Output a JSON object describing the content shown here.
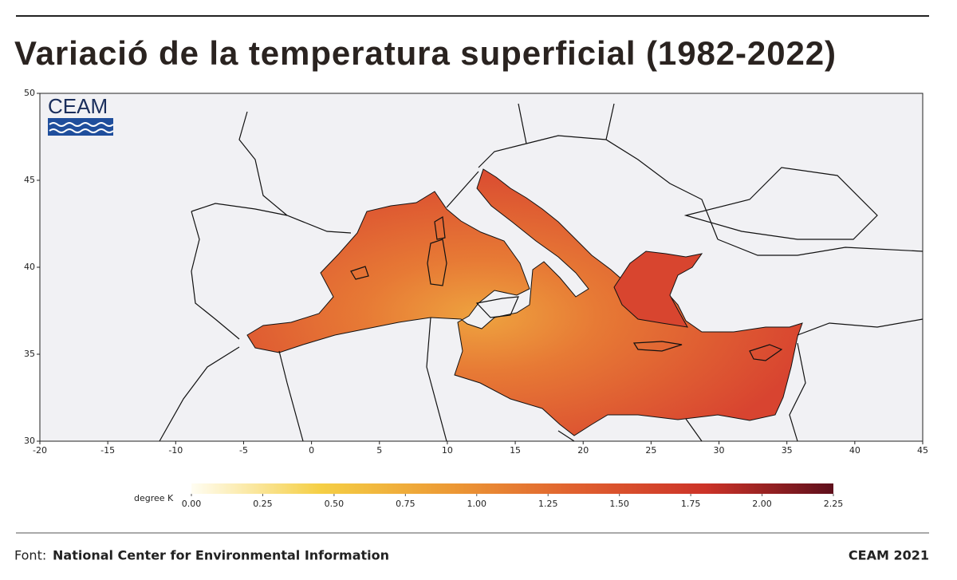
{
  "header": {
    "title": "Variació de la temperatura superficial (1982-2022)"
  },
  "map": {
    "logo": "CEAM",
    "lat_lim": [
      30,
      50
    ],
    "lat_ticks": [
      30,
      35,
      40,
      45,
      50
    ],
    "lon_lim": [
      -20,
      45
    ],
    "lon_ticks": [
      -20,
      -15,
      -10,
      -5,
      0,
      5,
      10,
      15,
      20,
      25,
      30,
      35,
      40,
      45
    ]
  },
  "colorbar": {
    "label": "degree K",
    "lim": [
      0,
      2.25
    ],
    "ticks": [
      {
        "value": 0,
        "label": "0.00"
      },
      {
        "value": 0.25,
        "label": "0.25"
      },
      {
        "value": 0.5,
        "label": "0.50"
      },
      {
        "value": 0.75,
        "label": "0.75"
      },
      {
        "value": 1,
        "label": "1.00"
      },
      {
        "value": 1.25,
        "label": "1.25"
      },
      {
        "value": 1.5,
        "label": "1.50"
      },
      {
        "value": 1.75,
        "label": "1.75"
      },
      {
        "value": 2,
        "label": "2.00"
      },
      {
        "value": 2.25,
        "label": "2.25"
      }
    ],
    "colors": [
      "#fffdf2",
      "#f5cf45",
      "#ec9a35",
      "#e0602f",
      "#cc3328",
      "#5e0f1c"
    ]
  },
  "footer": {
    "source_label": "Font:",
    "source": "National Center for Environmental Information",
    "credit": "CEAM 2021"
  }
}
